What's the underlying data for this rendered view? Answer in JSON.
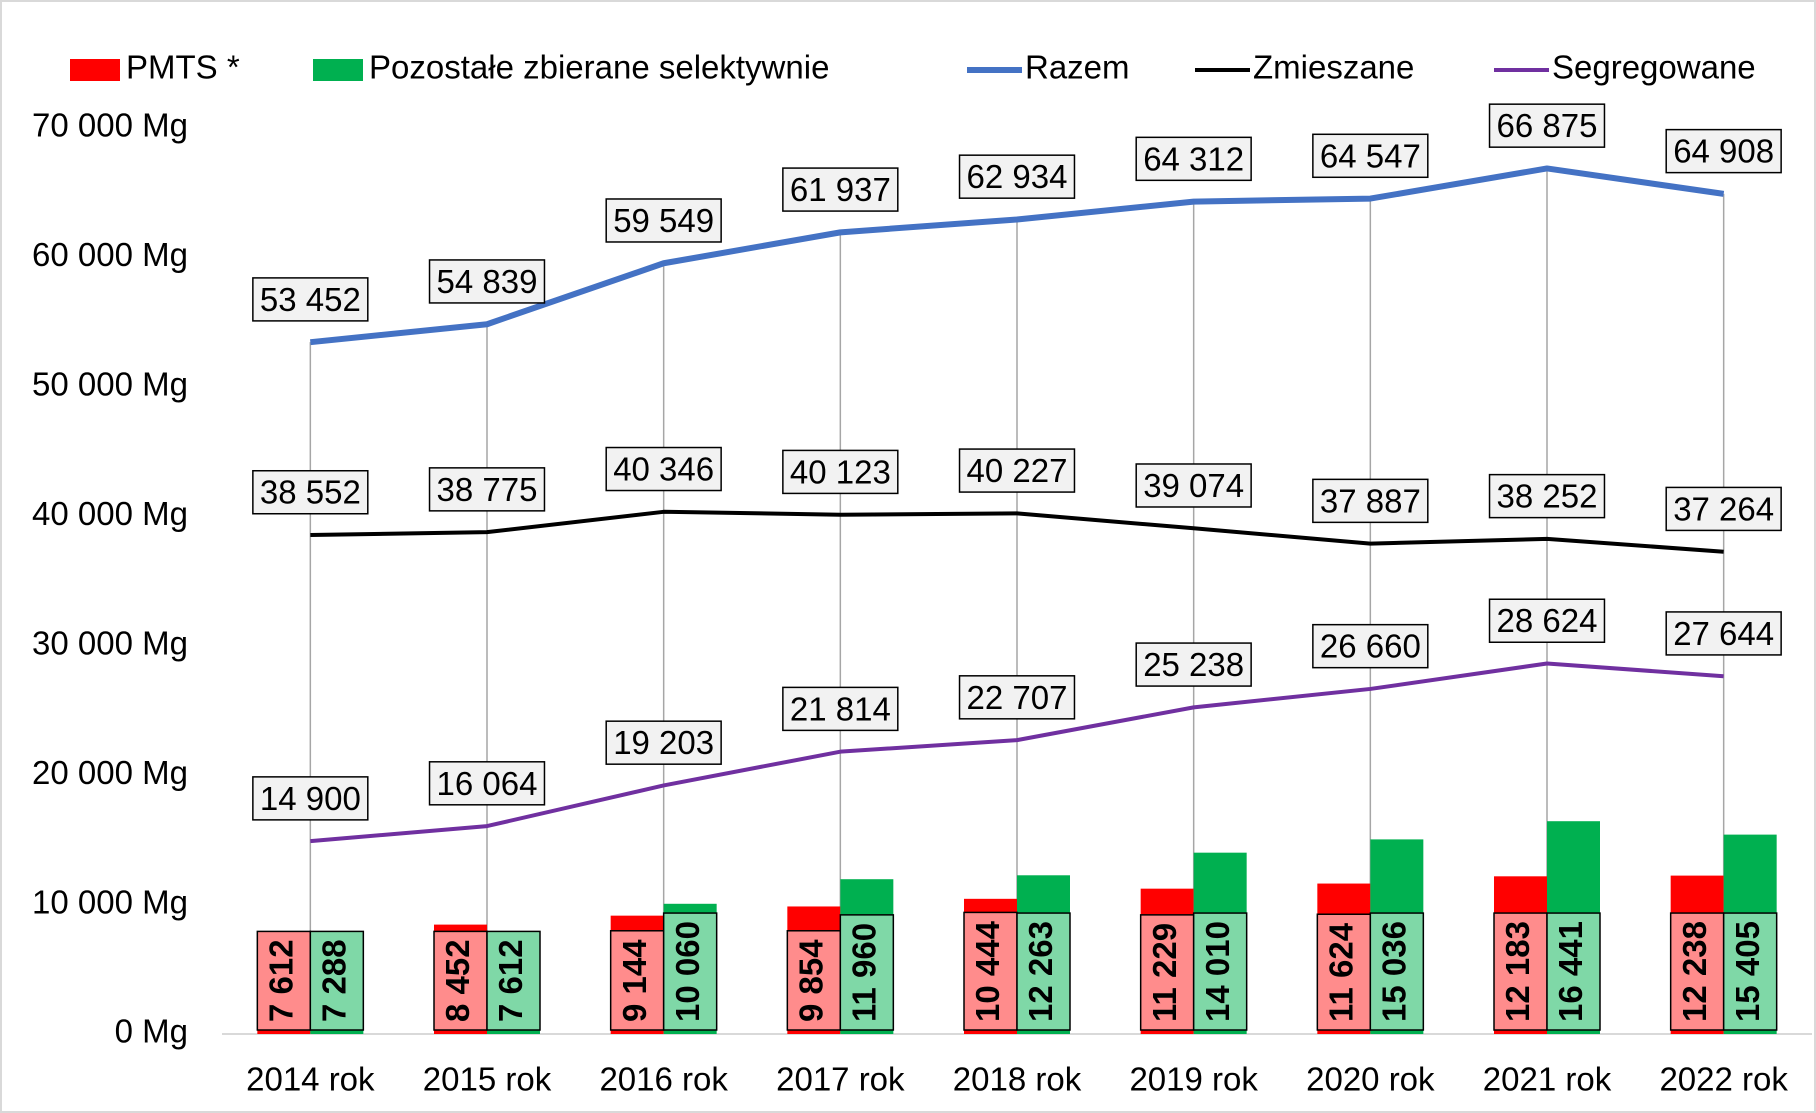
{
  "chart_data": {
    "type": "bar-line",
    "categories": [
      "2014 rok",
      "2015 rok",
      "2016 rok",
      "2017 rok",
      "2018 rok",
      "2019 rok",
      "2020 rok",
      "2021 rok",
      "2022 rok"
    ],
    "series": [
      {
        "name": "PMTS *",
        "type": "bar",
        "color": "#ff0000",
        "label_fill": "#ff8c8c",
        "values": [
          7612,
          8452,
          9144,
          9854,
          10444,
          11229,
          11624,
          12183,
          12238
        ],
        "value_labels": [
          "7 612",
          "8 452",
          "9 144",
          "9 854",
          "10 444",
          "11 229",
          "11 624",
          "12 183",
          "12 238"
        ]
      },
      {
        "name": "Pozostałe zbierane selektywnie",
        "type": "bar",
        "color": "#00b050",
        "label_fill": "#7fd8a7",
        "values": [
          7288,
          7612,
          10060,
          11960,
          12263,
          14010,
          15036,
          16441,
          15405
        ],
        "value_labels": [
          "7 288",
          "7 612",
          "10 060",
          "11 960",
          "12 263",
          "14 010",
          "15 036",
          "16 441",
          "15 405"
        ]
      },
      {
        "name": "Razem",
        "type": "line",
        "color": "#4472c4",
        "width": 6,
        "values": [
          53452,
          54839,
          59549,
          61937,
          62934,
          64312,
          64547,
          66875,
          64908
        ],
        "value_labels": [
          "53 452",
          "54 839",
          "59 549",
          "61 937",
          "62 934",
          "64 312",
          "64 547",
          "66 875",
          "64 908"
        ]
      },
      {
        "name": "Zmieszane",
        "type": "line",
        "color": "#000000",
        "width": 4,
        "values": [
          38552,
          38775,
          40346,
          40123,
          40227,
          39074,
          37887,
          38252,
          37264
        ],
        "value_labels": [
          "38 552",
          "38 775",
          "40 346",
          "40 123",
          "40 227",
          "39 074",
          "37 887",
          "38 252",
          "37 264"
        ]
      },
      {
        "name": "Segregowane",
        "type": "line",
        "color": "#7030a0",
        "width": 4,
        "values": [
          14900,
          16064,
          19203,
          21814,
          22707,
          25238,
          26660,
          28624,
          27644
        ],
        "value_labels": [
          "14 900",
          "16 064",
          "19 203",
          "21 814",
          "22 707",
          "25 238",
          "26 660",
          "28 624",
          "27 644"
        ]
      }
    ],
    "ylim": [
      0,
      70000
    ],
    "yticks": [
      {
        "value": 0,
        "label": "0 Mg"
      },
      {
        "value": 10000,
        "label": "10 000 Mg"
      },
      {
        "value": 20000,
        "label": "20 000 Mg"
      },
      {
        "value": 30000,
        "label": "30 000 Mg"
      },
      {
        "value": 40000,
        "label": "40 000 Mg"
      },
      {
        "value": 50000,
        "label": "50 000 Mg"
      },
      {
        "value": 60000,
        "label": "60 000 Mg"
      },
      {
        "value": 70000,
        "label": "70 000 Mg"
      }
    ],
    "legend": "top"
  }
}
